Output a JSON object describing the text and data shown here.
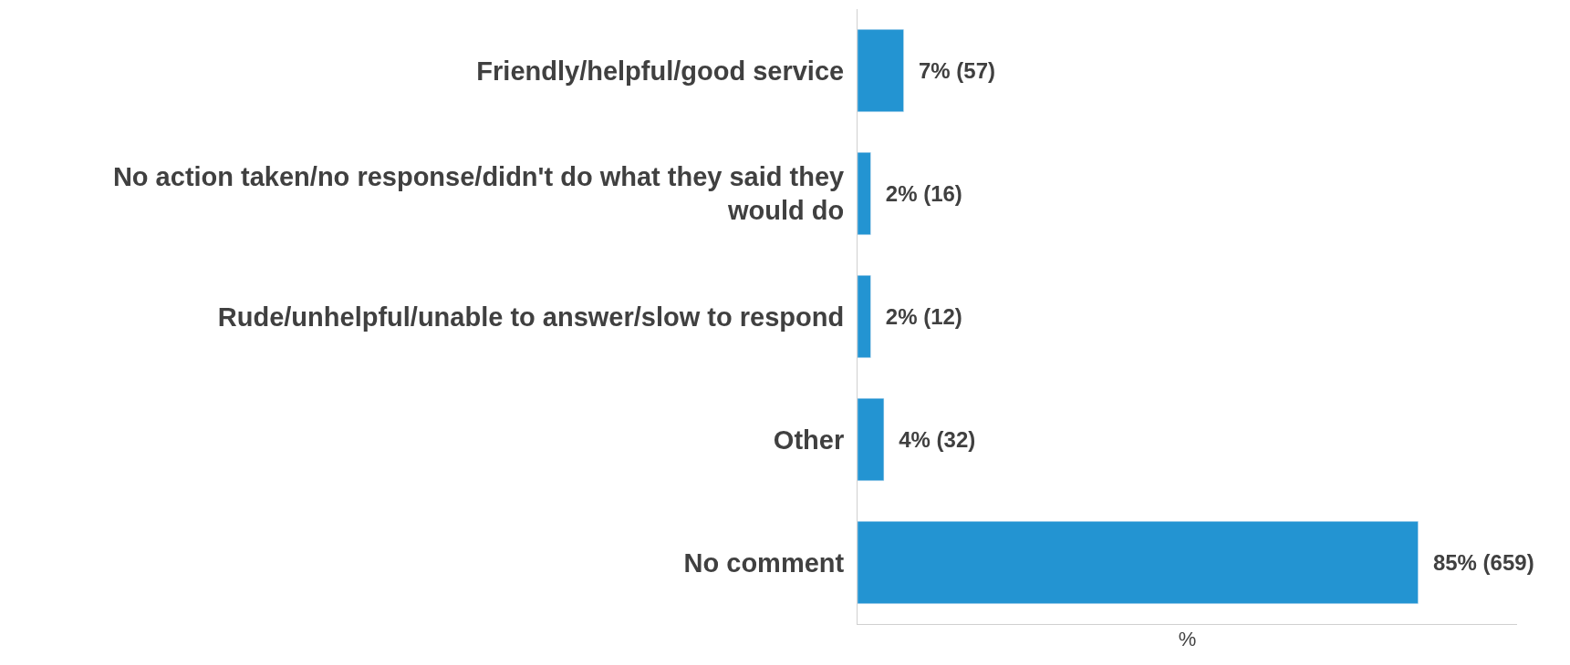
{
  "chart_data": {
    "type": "bar",
    "orientation": "horizontal",
    "categories": [
      "Friendly/helpful/good service",
      "No action taken/no response/didn't do what they said they\nwould do",
      "Rude/unhelpful/unable to answer/slow to respond",
      "Other",
      "No comment"
    ],
    "values": [
      7,
      2,
      2,
      4,
      85
    ],
    "value_labels": [
      "7% (57)",
      "2% (16)",
      "2% (12)",
      "4% (32)",
      "85% (659)"
    ],
    "color": "#2394d2",
    "xlabel": "%",
    "xlim": [
      0,
      100
    ],
    "tick_labels": "y",
    "legend": false
  }
}
